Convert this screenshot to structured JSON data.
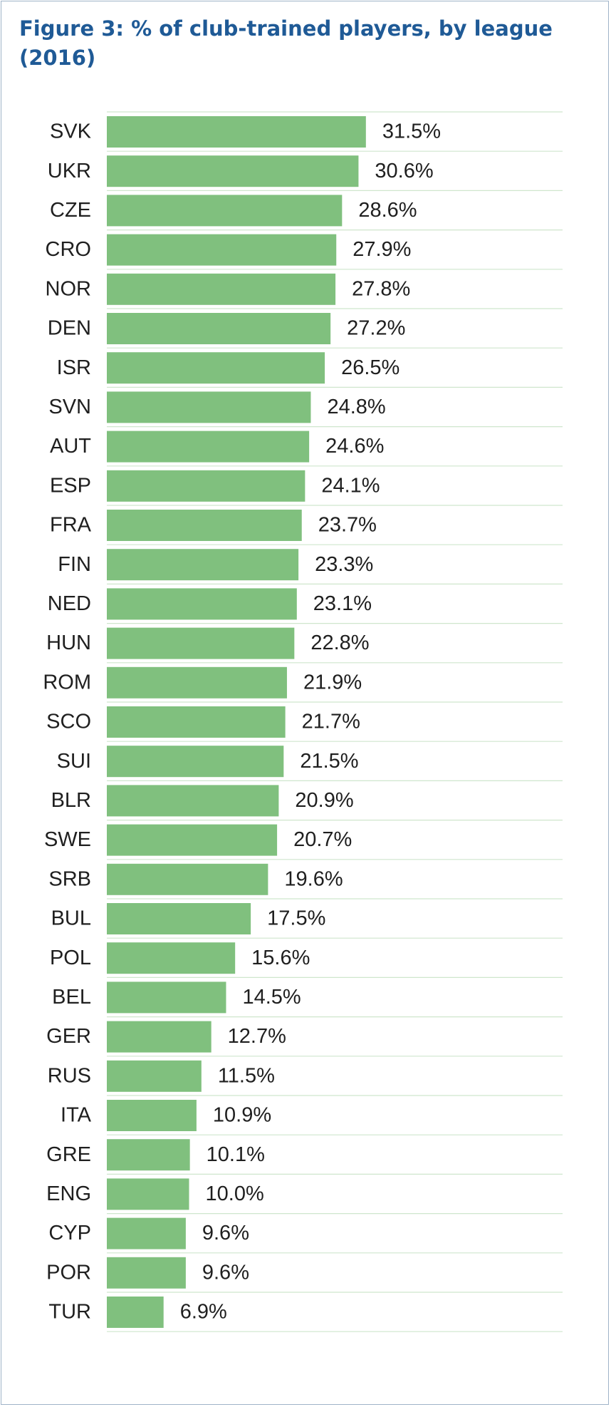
{
  "figure": {
    "title": "Figure 3: % of club-trained players, by league (2016)"
  },
  "colors": {
    "bar": "#80c07e",
    "title": "#1f5a96",
    "grid": "#cfe6cd",
    "border": "#9fb3c8"
  },
  "chart_data": {
    "type": "bar",
    "orientation": "horizontal",
    "title": "Figure 3: % of club-trained players, by league (2016)",
    "xlabel": "",
    "ylabel": "",
    "value_suffix": "%",
    "xlim": [
      0,
      40
    ],
    "grid": true,
    "legend": "none",
    "categories": [
      "SVK",
      "UKR",
      "CZE",
      "CRO",
      "NOR",
      "DEN",
      "ISR",
      "SVN",
      "AUT",
      "ESP",
      "FRA",
      "FIN",
      "NED",
      "HUN",
      "ROM",
      "SCO",
      "SUI",
      "BLR",
      "SWE",
      "SRB",
      "BUL",
      "POL",
      "BEL",
      "GER",
      "RUS",
      "ITA",
      "GRE",
      "ENG",
      "CYP",
      "POR",
      "TUR"
    ],
    "values": [
      31.5,
      30.6,
      28.6,
      27.9,
      27.8,
      27.2,
      26.5,
      24.8,
      24.6,
      24.1,
      23.7,
      23.3,
      23.1,
      22.8,
      21.9,
      21.7,
      21.5,
      20.9,
      20.7,
      19.6,
      17.5,
      15.6,
      14.5,
      12.7,
      11.5,
      10.9,
      10.1,
      10.0,
      9.6,
      9.6,
      6.9
    ],
    "value_labels": [
      "31.5%",
      "30.6%",
      "28.6%",
      "27.9%",
      "27.8%",
      "27.2%",
      "26.5%",
      "24.8%",
      "24.6%",
      "24.1%",
      "23.7%",
      "23.3%",
      "23.1%",
      "22.8%",
      "21.9%",
      "21.7%",
      "21.5%",
      "20.9%",
      "20.7%",
      "19.6%",
      "17.5%",
      "15.6%",
      "14.5%",
      "12.7%",
      "11.5%",
      "10.9%",
      "10.1%",
      "10.0%",
      "9.6%",
      "9.6%",
      "6.9%"
    ]
  }
}
